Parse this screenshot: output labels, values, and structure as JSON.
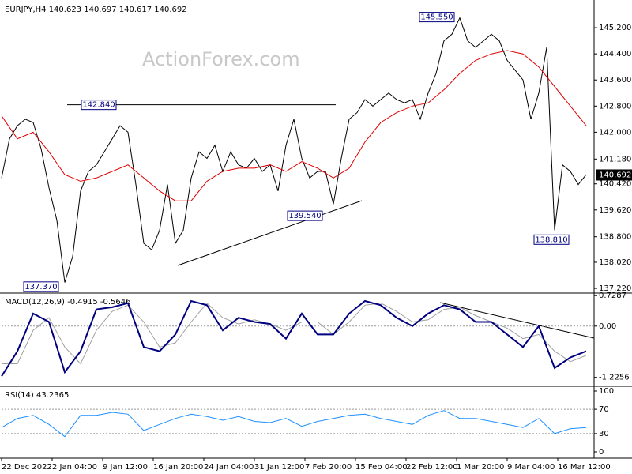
{
  "chart_data": [
    {
      "type": "line",
      "title": "EURJPY,H4  140.623 140.697 140.617 140.692",
      "watermark": "ActionForex.com",
      "xlim": [
        0,
        375
      ],
      "ylim": [
        137.1,
        146.0
      ],
      "yticks": [
        {
          "value": 145.2,
          "label": "145.200"
        },
        {
          "value": 144.4,
          "label": "144.400"
        },
        {
          "value": 143.6,
          "label": "143.600"
        },
        {
          "value": 142.8,
          "label": "142.800"
        },
        {
          "value": 142.0,
          "label": "142.000"
        },
        {
          "value": 141.18,
          "label": "141.180"
        },
        {
          "value": 140.42,
          "label": "140.420"
        },
        {
          "value": 139.62,
          "label": "139.620"
        },
        {
          "value": 138.8,
          "label": "138.800"
        },
        {
          "value": 138.02,
          "label": "138.020"
        },
        {
          "value": 137.22,
          "label": "137.220"
        }
      ],
      "last_price": {
        "value": 140.692,
        "label": "140.692"
      },
      "annotations": [
        {
          "value": 142.84,
          "label": "142.840"
        },
        {
          "value": 137.37,
          "label": "137.370"
        },
        {
          "value": 139.54,
          "label": "139.540"
        },
        {
          "value": 145.55,
          "label": "145.550"
        },
        {
          "value": 138.81,
          "label": "138.810"
        }
      ],
      "series": [
        {
          "color": "#000000",
          "x": [
            0,
            5,
            10,
            15,
            20,
            25,
            30,
            35,
            40,
            45,
            50,
            55,
            60,
            65,
            70,
            75,
            80,
            85,
            90,
            95,
            100,
            105,
            110,
            115,
            120,
            125,
            130,
            135,
            140,
            145,
            150,
            155,
            160,
            165,
            170,
            175,
            180,
            185,
            190,
            195,
            200,
            205,
            210,
            215,
            220,
            225,
            230,
            235,
            240,
            245,
            250,
            255,
            260,
            265,
            270,
            275,
            280,
            285,
            290,
            295,
            300,
            305,
            310,
            315,
            320,
            325,
            330,
            335,
            340,
            345,
            350,
            355,
            360,
            365,
            370
          ],
          "values": [
            140.6,
            141.8,
            142.2,
            142.4,
            142.3,
            141.5,
            140.3,
            139.3,
            137.4,
            138.2,
            140.2,
            140.8,
            141.0,
            141.4,
            141.8,
            142.2,
            142.0,
            140.4,
            138.6,
            138.4,
            139.0,
            140.4,
            138.6,
            139.0,
            140.6,
            141.4,
            141.2,
            141.6,
            140.8,
            141.4,
            141.0,
            140.9,
            141.2,
            140.8,
            141.0,
            140.2,
            141.6,
            142.4,
            141.2,
            140.6,
            140.8,
            140.8,
            139.8,
            141.2,
            142.4,
            142.6,
            143.0,
            142.8,
            143.0,
            143.2,
            143.0,
            142.9,
            143.0,
            142.4,
            143.2,
            143.8,
            144.8,
            145.0,
            145.5,
            144.8,
            144.6,
            144.8,
            145.0,
            144.8,
            144.2,
            143.9,
            143.6,
            142.4,
            143.2,
            144.6,
            139.0,
            141.0,
            140.8,
            140.4,
            140.7
          ]
        },
        {
          "color": "#e00000",
          "x": [
            0,
            10,
            20,
            30,
            40,
            50,
            60,
            70,
            80,
            90,
            100,
            110,
            120,
            130,
            140,
            150,
            160,
            170,
            180,
            190,
            200,
            210,
            220,
            230,
            240,
            250,
            260,
            270,
            280,
            290,
            300,
            310,
            320,
            330,
            340,
            350,
            360,
            370
          ],
          "values": [
            142.5,
            141.8,
            142.0,
            141.4,
            140.7,
            140.5,
            140.6,
            140.8,
            141.0,
            140.6,
            140.2,
            139.9,
            139.9,
            140.5,
            140.8,
            140.9,
            140.9,
            141.0,
            140.8,
            141.1,
            140.9,
            140.6,
            140.9,
            141.7,
            142.3,
            142.6,
            142.8,
            142.9,
            143.3,
            143.8,
            144.2,
            144.4,
            144.5,
            144.4,
            144.0,
            143.4,
            142.8,
            142.2
          ]
        }
      ]
    },
    {
      "type": "line",
      "title": "MACD(12,26,9) -0.4915 -0.5646",
      "xlim": [
        0,
        375
      ],
      "ylim": [
        -1.42,
        0.77
      ],
      "yticks": [
        0.7287,
        {
          "value": 0,
          "label": "0.00"
        },
        -1.2256
      ],
      "series": [
        {
          "color": "#a0a0a0",
          "x": [
            0,
            10,
            20,
            30,
            40,
            50,
            60,
            70,
            80,
            90,
            100,
            110,
            120,
            130,
            140,
            150,
            160,
            170,
            180,
            190,
            200,
            210,
            220,
            230,
            240,
            250,
            260,
            270,
            280,
            290,
            300,
            310,
            320,
            330,
            340,
            350,
            360,
            370
          ],
          "values": [
            -0.9,
            -0.9,
            -0.1,
            0.2,
            -0.5,
            -0.9,
            -0.1,
            0.35,
            0.5,
            0.1,
            -0.5,
            -0.4,
            0.1,
            0.55,
            0.2,
            0.05,
            0.15,
            0.05,
            -0.1,
            0.1,
            0.1,
            -0.2,
            0.1,
            0.5,
            0.55,
            0.35,
            0.1,
            0.15,
            0.4,
            0.45,
            0.25,
            0.1,
            -0.05,
            -0.3,
            -0.2,
            -0.6,
            -0.85,
            -0.7
          ]
        },
        {
          "color": "#000080",
          "x": [
            0,
            10,
            20,
            30,
            40,
            50,
            60,
            70,
            80,
            90,
            100,
            110,
            120,
            130,
            140,
            150,
            160,
            170,
            180,
            190,
            200,
            210,
            220,
            230,
            240,
            250,
            260,
            270,
            280,
            290,
            300,
            310,
            320,
            330,
            340,
            350,
            360,
            370
          ],
          "values": [
            -1.2,
            -0.6,
            0.3,
            0.1,
            -1.1,
            -0.6,
            0.4,
            0.45,
            0.55,
            -0.5,
            -0.6,
            -0.2,
            0.6,
            0.5,
            -0.1,
            0.2,
            0.1,
            0.05,
            -0.3,
            0.3,
            -0.2,
            -0.2,
            0.3,
            0.6,
            0.5,
            0.2,
            0.0,
            0.3,
            0.5,
            0.4,
            0.1,
            0.1,
            -0.2,
            -0.5,
            0.0,
            -1.0,
            -0.75,
            -0.6
          ]
        }
      ]
    },
    {
      "type": "line",
      "title": "RSI(14) 43.2365",
      "xlim": [
        0,
        375
      ],
      "ylim": [
        -7.8,
        106.5
      ],
      "yticks": [
        100,
        70,
        30,
        0
      ],
      "levels": [
        70,
        30
      ],
      "xticks": [
        {
          "value": 0,
          "label": "22 Dec 2022"
        },
        {
          "value": 32,
          "label": "2 Jan 04:00"
        },
        {
          "value": 64,
          "label": "9 Jan 12:00"
        },
        {
          "value": 96,
          "label": "16 Jan 20:00"
        },
        {
          "value": 128,
          "label": "24 Jan 04:00"
        },
        {
          "value": 160,
          "label": "31 Jan 12:00"
        },
        {
          "value": 192,
          "label": "7 Feb 20:00"
        },
        {
          "value": 224,
          "label": "15 Feb 04:00"
        },
        {
          "value": 256,
          "label": "22 Feb 12:00"
        },
        {
          "value": 288,
          "label": "1 Mar 20:00"
        },
        {
          "value": 320,
          "label": "9 Mar 04:00"
        },
        {
          "value": 352,
          "label": "16 Mar 12:00"
        }
      ],
      "series": [
        {
          "color": "#1e90ff",
          "x": [
            0,
            10,
            20,
            30,
            40,
            50,
            60,
            70,
            80,
            90,
            100,
            110,
            120,
            130,
            140,
            150,
            160,
            170,
            180,
            190,
            200,
            210,
            220,
            230,
            240,
            250,
            260,
            270,
            280,
            290,
            300,
            310,
            320,
            330,
            340,
            350,
            360,
            370
          ],
          "values": [
            40,
            55,
            60,
            45,
            25,
            60,
            60,
            65,
            62,
            35,
            45,
            55,
            62,
            58,
            52,
            58,
            50,
            48,
            55,
            42,
            50,
            55,
            60,
            62,
            55,
            50,
            45,
            60,
            68,
            55,
            55,
            50,
            45,
            40,
            55,
            30,
            38,
            40
          ]
        }
      ]
    }
  ]
}
